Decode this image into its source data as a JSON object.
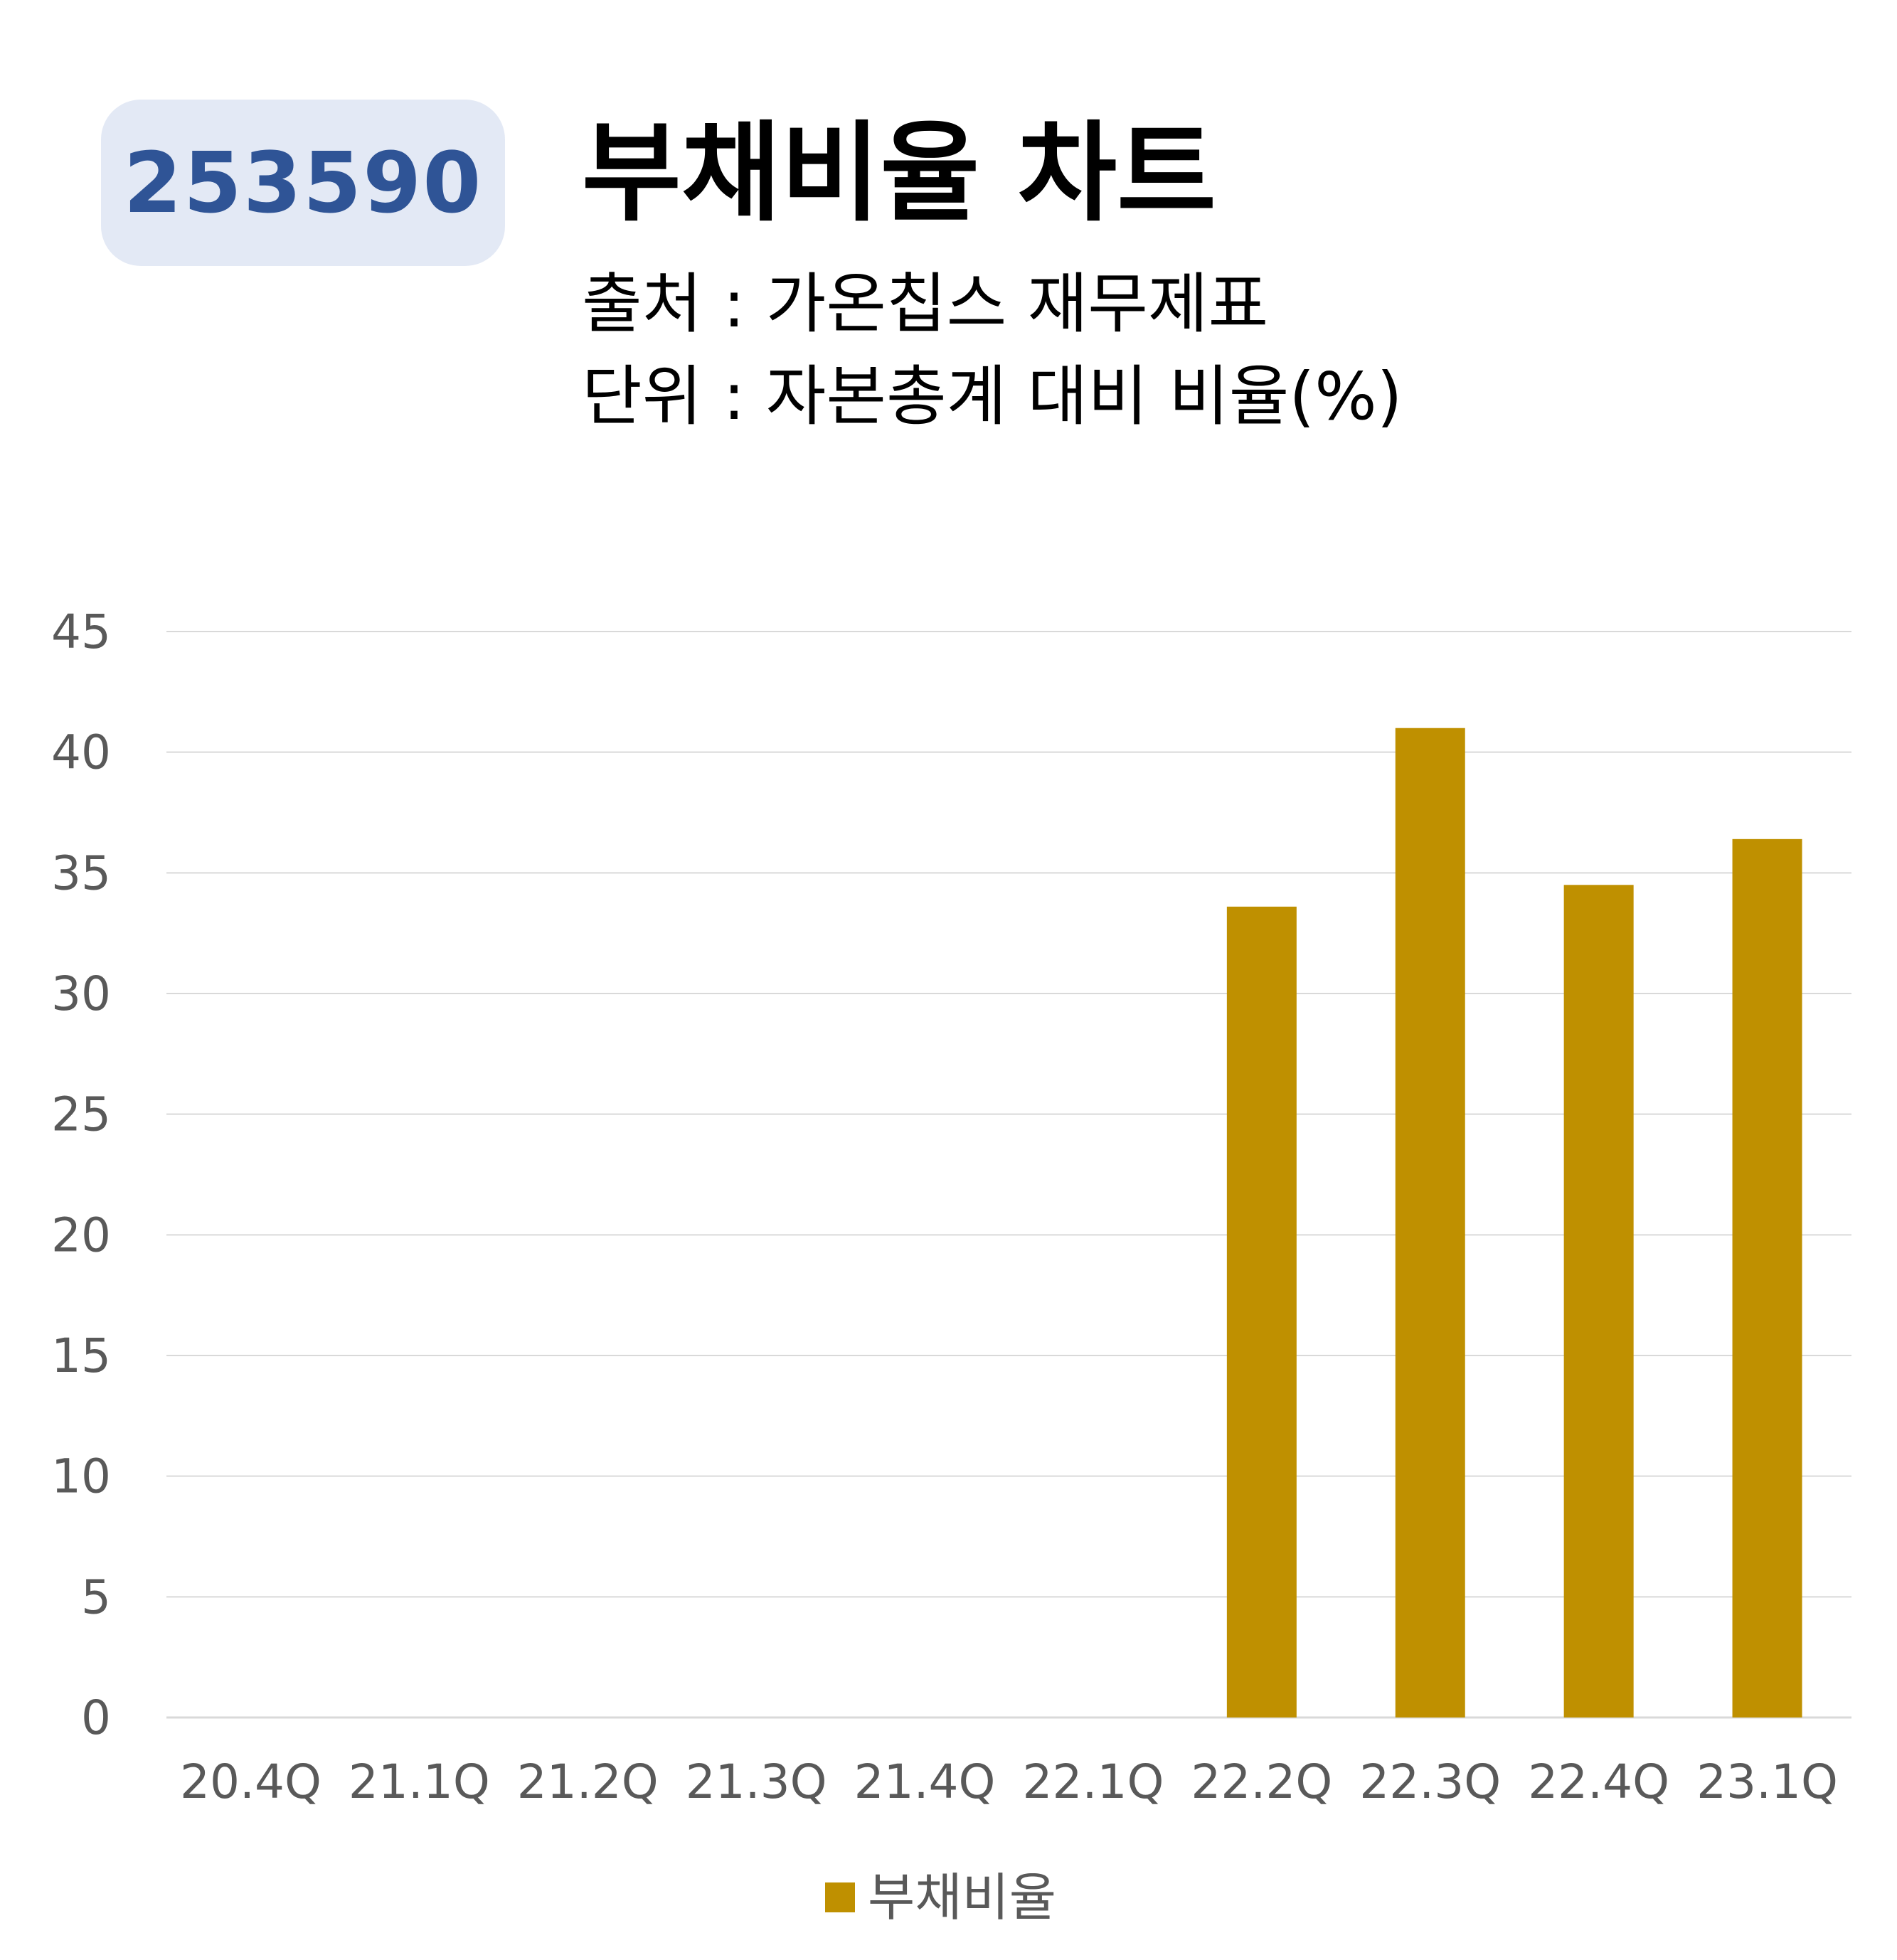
{
  "header": {
    "badge": "253590",
    "title": "부채비율 차트",
    "source": "출처 : 가온칩스 재무제표",
    "unit": "단위 : 자본총계 대비 비율(%)"
  },
  "colors": {
    "bar": "#bf9000",
    "grid": "#d9d9d9",
    "axis_text": "#595959",
    "badge_bg": "#e3e9f5",
    "badge_text": "#2f5496"
  },
  "chart_data": {
    "type": "bar",
    "title": "부채비율 차트",
    "xlabel": "",
    "ylabel": "",
    "categories": [
      "20.4Q",
      "21.1Q",
      "21.2Q",
      "21.3Q",
      "21.4Q",
      "22.1Q",
      "22.2Q",
      "22.3Q",
      "22.4Q",
      "23.1Q"
    ],
    "series": [
      {
        "name": "부채비율",
        "values": [
          null,
          null,
          null,
          null,
          null,
          null,
          33.6,
          41.0,
          34.5,
          36.4
        ]
      }
    ],
    "ylim": [
      0,
      45
    ],
    "yticks": [
      0,
      5,
      10,
      15,
      20,
      25,
      30,
      35,
      40,
      45
    ],
    "grid": true,
    "legend": "bottom-center"
  }
}
